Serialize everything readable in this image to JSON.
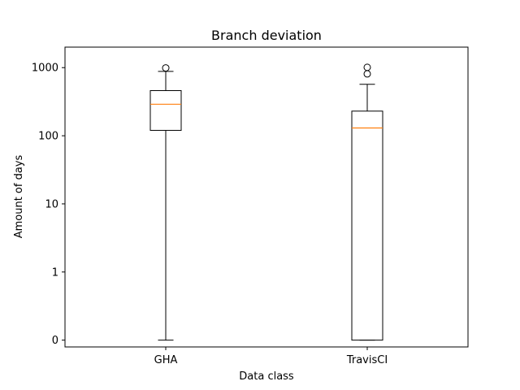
{
  "chart_data": {
    "type": "box",
    "title": "Branch deviation",
    "xlabel": "Data class",
    "ylabel": "Amount of days",
    "yscale": "symlog",
    "yticks": [
      0,
      1,
      10,
      100,
      1000
    ],
    "ytick_labels": [
      "0",
      "1",
      "10",
      "100",
      "1000"
    ],
    "ylim": [
      -0.1,
      2000
    ],
    "categories": [
      "GHA",
      "TravisCI"
    ],
    "boxes": [
      {
        "name": "GHA",
        "whisker_low": 0,
        "q1": 120,
        "median": 290,
        "q3": 460,
        "whisker_high": 880,
        "fliers": [
          990
        ]
      },
      {
        "name": "TravisCI",
        "whisker_low": 0,
        "q1": 0,
        "median": 130,
        "q3": 230,
        "whisker_high": 570,
        "fliers": [
          810,
          1010
        ]
      }
    ],
    "colors": {
      "box": "#000000",
      "median": "#ff7f0e",
      "flier": "#000000"
    }
  }
}
